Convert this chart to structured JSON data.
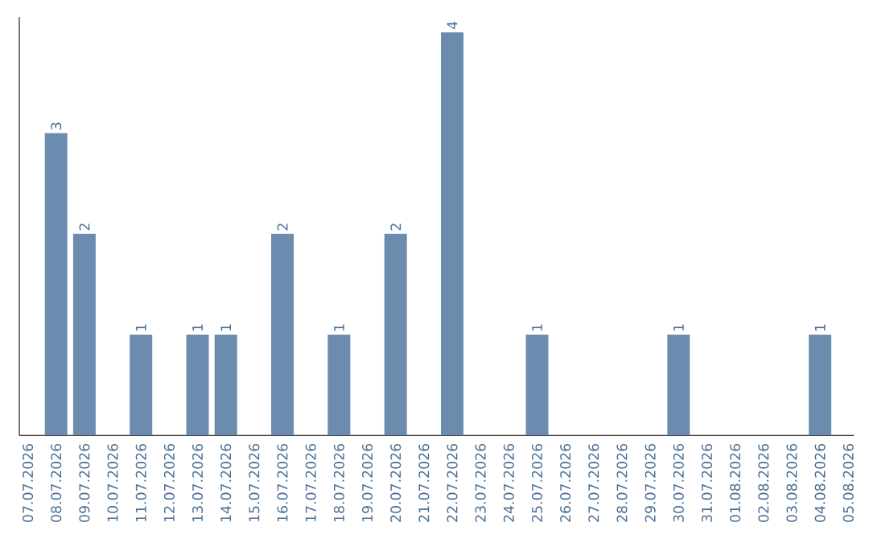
{
  "chart_data": {
    "type": "bar",
    "categories": [
      "07.07.2026",
      "08.07.2026",
      "09.07.2026",
      "10.07.2026",
      "11.07.2026",
      "12.07.2026",
      "13.07.2026",
      "14.07.2026",
      "15.07.2026",
      "16.07.2026",
      "17.07.2026",
      "18.07.2026",
      "19.07.2026",
      "20.07.2026",
      "21.07.2026",
      "22.07.2026",
      "23.07.2026",
      "24.07.2026",
      "25.07.2026",
      "26.07.2026",
      "27.07.2026",
      "28.07.2026",
      "29.07.2026",
      "30.07.2026",
      "31.07.2026",
      "01.08.2026",
      "02.08.2026",
      "03.08.2026",
      "04.08.2026",
      "05.08.2026"
    ],
    "values": [
      0,
      3,
      2,
      0,
      1,
      0,
      1,
      1,
      0,
      2,
      0,
      1,
      0,
      2,
      0,
      4,
      0,
      0,
      1,
      0,
      0,
      0,
      0,
      1,
      0,
      0,
      0,
      0,
      1,
      0
    ],
    "value_labels": [
      null,
      "3",
      "2",
      null,
      "1",
      null,
      "1",
      "1",
      null,
      "2",
      null,
      "1",
      null,
      "2",
      null,
      "4",
      null,
      null,
      "1",
      null,
      null,
      null,
      null,
      "1",
      null,
      null,
      null,
      null,
      "1",
      null
    ],
    "color": "#6b8cae",
    "ylim": [
      0,
      4.15
    ],
    "tick_labels": "x"
  }
}
